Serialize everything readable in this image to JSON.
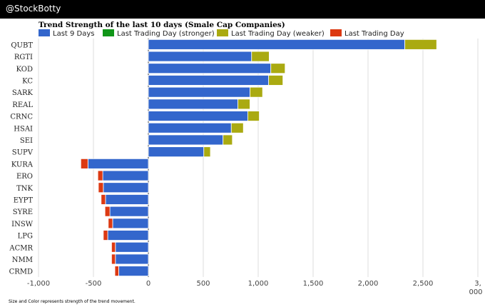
{
  "header": {
    "brand": "@StockBotty"
  },
  "footnote": "Size and Color represents strength of the trend movement.",
  "colors": {
    "prior": "#3366cc",
    "stronger": "#109618",
    "weaker": "#aaaa11",
    "last": "#dc3912",
    "grid": "#dddddd"
  },
  "chart_data": {
    "type": "bar",
    "orientation": "horizontal",
    "stacked": true,
    "title": "Trend Strength of the last 10 days (Smale Cap Companies)",
    "legend": [
      "Last 9 Days",
      "Last Trading Day (stronger)",
      "Last Trading Day (weaker)",
      "Last Trading Day"
    ],
    "legend_position": "top",
    "categories": [
      "QUBT",
      "RGTI",
      "KOD",
      "KC",
      "SARK",
      "REAL",
      "CRNC",
      "HSAI",
      "SEI",
      "SUPV",
      "KURA",
      "ERO",
      "TNK",
      "EYPT",
      "SYRE",
      "INSW",
      "LPG",
      "ACMR",
      "NMM",
      "CRMD"
    ],
    "series": [
      {
        "name": "Last 9 Days",
        "values": [
          2335,
          940,
          1115,
          1095,
          925,
          815,
          905,
          755,
          680,
          505,
          -550,
          -415,
          -410,
          -390,
          -350,
          -325,
          -370,
          -300,
          -300,
          -270
        ]
      },
      {
        "name": "Last Trading Day (stronger)",
        "values": [
          0,
          0,
          0,
          0,
          0,
          0,
          0,
          0,
          0,
          0,
          0,
          0,
          0,
          0,
          0,
          0,
          0,
          0,
          0,
          0
        ]
      },
      {
        "name": "Last Trading Day (weaker)",
        "values": [
          290,
          160,
          130,
          130,
          115,
          110,
          105,
          110,
          85,
          60,
          0,
          0,
          0,
          0,
          0,
          0,
          0,
          0,
          0,
          0
        ]
      },
      {
        "name": "Last Trading Day",
        "values": [
          0,
          0,
          0,
          0,
          0,
          0,
          0,
          0,
          0,
          0,
          -65,
          -45,
          -45,
          -40,
          -45,
          -40,
          -40,
          -35,
          -35,
          -35
        ]
      }
    ],
    "xlim": [
      -1000,
      3000
    ],
    "xticks": [
      -1000,
      -500,
      0,
      500,
      1000,
      1500,
      2000,
      2500,
      3000
    ],
    "xtick_labels": [
      "-1,000",
      "-500",
      "0",
      "500",
      "1,000",
      "1,500",
      "2,000",
      "2,500",
      "3,\n000"
    ],
    "grid": true
  }
}
